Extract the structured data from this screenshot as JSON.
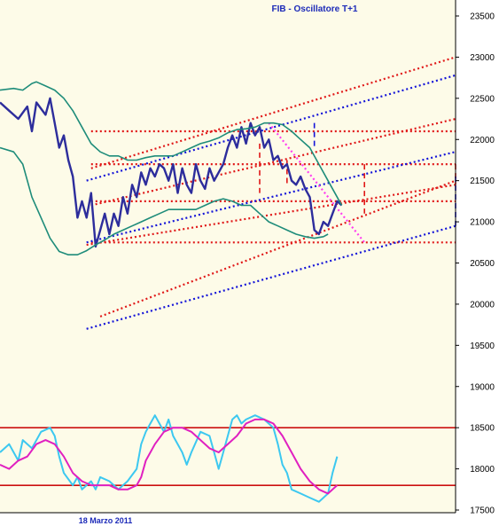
{
  "chart_data": {
    "type": "line",
    "title": "FIB - Oscillatore T+1",
    "date_label": "18 Marzo 2011",
    "yticks": [
      17500,
      18000,
      18500,
      19000,
      19500,
      20000,
      20500,
      21000,
      21500,
      22000,
      22500,
      23000,
      23500
    ],
    "ylim": [
      17500,
      23500
    ],
    "x_range": [
      0,
      100
    ],
    "colors": {
      "background": "#fdfbe8",
      "price": "#2d2d9c",
      "bands": "#1e8c7a",
      "red": "#e01818",
      "blue": "#1414d8",
      "magenta": "#ff3cf0",
      "osc_fast": "#3cc8f0",
      "osc_slow": "#e020c0",
      "osc_levels": "#cc1010"
    },
    "series": [
      {
        "role": "price",
        "points": [
          [
            0,
            22450
          ],
          [
            2,
            22350
          ],
          [
            4,
            22250
          ],
          [
            6,
            22400
          ],
          [
            7,
            22100
          ],
          [
            8,
            22450
          ],
          [
            10,
            22300
          ],
          [
            11,
            22500
          ],
          [
            12,
            22200
          ],
          [
            13,
            21900
          ],
          [
            14,
            22050
          ],
          [
            15,
            21750
          ],
          [
            16,
            21550
          ],
          [
            17,
            21050
          ],
          [
            18,
            21250
          ],
          [
            19,
            21050
          ],
          [
            20,
            21350
          ],
          [
            21,
            20700
          ],
          [
            22,
            20900
          ],
          [
            23,
            21100
          ],
          [
            24,
            20850
          ],
          [
            25,
            21100
          ],
          [
            26,
            20950
          ],
          [
            27,
            21300
          ],
          [
            28,
            21100
          ],
          [
            29,
            21450
          ],
          [
            30,
            21300
          ],
          [
            31,
            21600
          ],
          [
            32,
            21450
          ],
          [
            33,
            21650
          ],
          [
            34,
            21550
          ],
          [
            35,
            21700
          ],
          [
            36,
            21650
          ],
          [
            37,
            21500
          ],
          [
            38,
            21700
          ],
          [
            39,
            21350
          ],
          [
            40,
            21650
          ],
          [
            41,
            21450
          ],
          [
            42,
            21350
          ],
          [
            43,
            21700
          ],
          [
            44,
            21500
          ],
          [
            45,
            21400
          ],
          [
            46,
            21650
          ],
          [
            47,
            21500
          ],
          [
            48,
            21600
          ],
          [
            49,
            21700
          ],
          [
            50,
            21900
          ],
          [
            51,
            22050
          ],
          [
            52,
            21900
          ],
          [
            53,
            22150
          ],
          [
            54,
            21950
          ],
          [
            55,
            22200
          ],
          [
            56,
            22050
          ],
          [
            57,
            22150
          ],
          [
            58,
            21900
          ],
          [
            59,
            22000
          ],
          [
            60,
            21750
          ],
          [
            61,
            21800
          ],
          [
            62,
            21650
          ],
          [
            63,
            21700
          ],
          [
            64,
            21500
          ],
          [
            65,
            21450
          ],
          [
            66,
            21550
          ],
          [
            67,
            21400
          ],
          [
            68,
            21300
          ],
          [
            69,
            20900
          ],
          [
            70,
            20850
          ],
          [
            71,
            21000
          ],
          [
            72,
            20950
          ],
          [
            73,
            21100
          ],
          [
            74,
            21250
          ],
          [
            75,
            21200
          ]
        ]
      },
      {
        "role": "bollinger-upper",
        "points": [
          [
            0,
            22600
          ],
          [
            3,
            22620
          ],
          [
            5,
            22600
          ],
          [
            7,
            22680
          ],
          [
            8,
            22700
          ],
          [
            10,
            22650
          ],
          [
            12,
            22600
          ],
          [
            14,
            22500
          ],
          [
            16,
            22350
          ],
          [
            18,
            22150
          ],
          [
            20,
            21950
          ],
          [
            22,
            21850
          ],
          [
            24,
            21800
          ],
          [
            26,
            21800
          ],
          [
            28,
            21750
          ],
          [
            30,
            21750
          ],
          [
            32,
            21780
          ],
          [
            34,
            21800
          ],
          [
            36,
            21800
          ],
          [
            38,
            21800
          ],
          [
            40,
            21850
          ],
          [
            42,
            21900
          ],
          [
            44,
            21950
          ],
          [
            46,
            21980
          ],
          [
            48,
            22020
          ],
          [
            50,
            22080
          ],
          [
            52,
            22120
          ],
          [
            54,
            22130
          ],
          [
            56,
            22150
          ],
          [
            58,
            22200
          ],
          [
            60,
            22200
          ],
          [
            62,
            22180
          ],
          [
            64,
            22100
          ],
          [
            66,
            22000
          ],
          [
            68,
            21900
          ],
          [
            70,
            21700
          ],
          [
            72,
            21500
          ],
          [
            74,
            21300
          ],
          [
            75,
            21200
          ]
        ]
      },
      {
        "role": "bollinger-lower",
        "points": [
          [
            0,
            21900
          ],
          [
            3,
            21850
          ],
          [
            5,
            21700
          ],
          [
            7,
            21300
          ],
          [
            9,
            21050
          ],
          [
            11,
            20800
          ],
          [
            13,
            20640
          ],
          [
            15,
            20600
          ],
          [
            17,
            20600
          ],
          [
            19,
            20650
          ],
          [
            21,
            20720
          ],
          [
            23,
            20780
          ],
          [
            25,
            20850
          ],
          [
            27,
            20900
          ],
          [
            29,
            20950
          ],
          [
            31,
            21000
          ],
          [
            33,
            21050
          ],
          [
            35,
            21100
          ],
          [
            37,
            21150
          ],
          [
            39,
            21150
          ],
          [
            41,
            21150
          ],
          [
            43,
            21150
          ],
          [
            45,
            21200
          ],
          [
            47,
            21250
          ],
          [
            49,
            21280
          ],
          [
            51,
            21250
          ],
          [
            53,
            21200
          ],
          [
            55,
            21200
          ],
          [
            57,
            21100
          ],
          [
            59,
            21000
          ],
          [
            61,
            20950
          ],
          [
            63,
            20900
          ],
          [
            65,
            20850
          ],
          [
            67,
            20820
          ],
          [
            69,
            20800
          ],
          [
            71,
            20820
          ],
          [
            72,
            20850
          ]
        ]
      }
    ],
    "levels": [
      22100,
      21700,
      21250,
      20750
    ],
    "trend_lines": [
      {
        "color": "red",
        "from": [
          19,
          20720
        ],
        "to": [
          100,
          21450
        ]
      },
      {
        "color": "red",
        "from": [
          20,
          21200
        ],
        "to": [
          100,
          22250
        ]
      },
      {
        "color": "red",
        "from": [
          20,
          21650
        ],
        "to": [
          100,
          23000
        ]
      },
      {
        "color": "red",
        "from": [
          22,
          19850
        ],
        "to": [
          100,
          21500
        ]
      },
      {
        "color": "blue",
        "from": [
          19,
          20750
        ],
        "to": [
          100,
          21850
        ]
      },
      {
        "color": "blue",
        "from": [
          19,
          21500
        ],
        "to": [
          100,
          22780
        ]
      },
      {
        "color": "blue",
        "from": [
          19,
          19700
        ],
        "to": [
          100,
          20950
        ]
      },
      {
        "color": "magenta",
        "from": [
          59,
          22200
        ],
        "to": [
          80,
          20750
        ]
      }
    ],
    "vertical_markers": [
      {
        "color": "red",
        "x": 57,
        "from": 21350,
        "to": 21950
      },
      {
        "color": "red",
        "x": 63,
        "from": 21450,
        "to": 21750
      },
      {
        "color": "blue",
        "x": 69,
        "from": 21900,
        "to": 22200
      },
      {
        "color": "red",
        "x": 80,
        "from": 21100,
        "to": 21700
      },
      {
        "color": "red",
        "x": 100,
        "from": 21450,
        "to": 21700
      },
      {
        "color": "blue",
        "x": 100,
        "from": 20950,
        "to": 21550
      }
    ],
    "oscillator": {
      "levels": [
        18500,
        17800
      ],
      "fast": [
        [
          0,
          18200
        ],
        [
          2,
          18300
        ],
        [
          4,
          18100
        ],
        [
          5,
          18350
        ],
        [
          7,
          18250
        ],
        [
          9,
          18450
        ],
        [
          11,
          18500
        ],
        [
          12,
          18400
        ],
        [
          13,
          18150
        ],
        [
          14,
          17950
        ],
        [
          16,
          17800
        ],
        [
          17,
          17900
        ],
        [
          18,
          17750
        ],
        [
          20,
          17850
        ],
        [
          21,
          17750
        ],
        [
          22,
          17900
        ],
        [
          24,
          17850
        ],
        [
          26,
          17750
        ],
        [
          28,
          17850
        ],
        [
          30,
          18000
        ],
        [
          31,
          18300
        ],
        [
          32,
          18450
        ],
        [
          33,
          18550
        ],
        [
          34,
          18650
        ],
        [
          35,
          18550
        ],
        [
          36,
          18450
        ],
        [
          37,
          18600
        ],
        [
          38,
          18400
        ],
        [
          40,
          18200
        ],
        [
          41,
          18050
        ],
        [
          42,
          18200
        ],
        [
          44,
          18450
        ],
        [
          46,
          18400
        ],
        [
          47,
          18200
        ],
        [
          48,
          18000
        ],
        [
          49,
          18200
        ],
        [
          50,
          18400
        ],
        [
          51,
          18600
        ],
        [
          52,
          18650
        ],
        [
          53,
          18550
        ],
        [
          54,
          18600
        ],
        [
          56,
          18650
        ],
        [
          58,
          18600
        ],
        [
          60,
          18500
        ],
        [
          61,
          18300
        ],
        [
          62,
          18050
        ],
        [
          63,
          17950
        ],
        [
          64,
          17750
        ],
        [
          66,
          17700
        ],
        [
          68,
          17650
        ],
        [
          70,
          17600
        ],
        [
          71,
          17650
        ],
        [
          72,
          17700
        ],
        [
          73,
          17950
        ],
        [
          74,
          18150
        ]
      ],
      "slow": [
        [
          0,
          18050
        ],
        [
          2,
          18000
        ],
        [
          4,
          18100
        ],
        [
          6,
          18150
        ],
        [
          8,
          18300
        ],
        [
          10,
          18350
        ],
        [
          12,
          18300
        ],
        [
          14,
          18150
        ],
        [
          16,
          17950
        ],
        [
          18,
          17850
        ],
        [
          20,
          17800
        ],
        [
          22,
          17800
        ],
        [
          24,
          17800
        ],
        [
          26,
          17750
        ],
        [
          28,
          17750
        ],
        [
          30,
          17800
        ],
        [
          31,
          17900
        ],
        [
          32,
          18100
        ],
        [
          34,
          18300
        ],
        [
          36,
          18450
        ],
        [
          38,
          18500
        ],
        [
          40,
          18500
        ],
        [
          42,
          18450
        ],
        [
          44,
          18350
        ],
        [
          46,
          18250
        ],
        [
          48,
          18200
        ],
        [
          50,
          18300
        ],
        [
          52,
          18400
        ],
        [
          54,
          18550
        ],
        [
          56,
          18600
        ],
        [
          58,
          18600
        ],
        [
          60,
          18550
        ],
        [
          62,
          18400
        ],
        [
          64,
          18200
        ],
        [
          66,
          18000
        ],
        [
          68,
          17850
        ],
        [
          70,
          17750
        ],
        [
          72,
          17700
        ],
        [
          73,
          17750
        ],
        [
          74,
          17800
        ]
      ]
    }
  }
}
